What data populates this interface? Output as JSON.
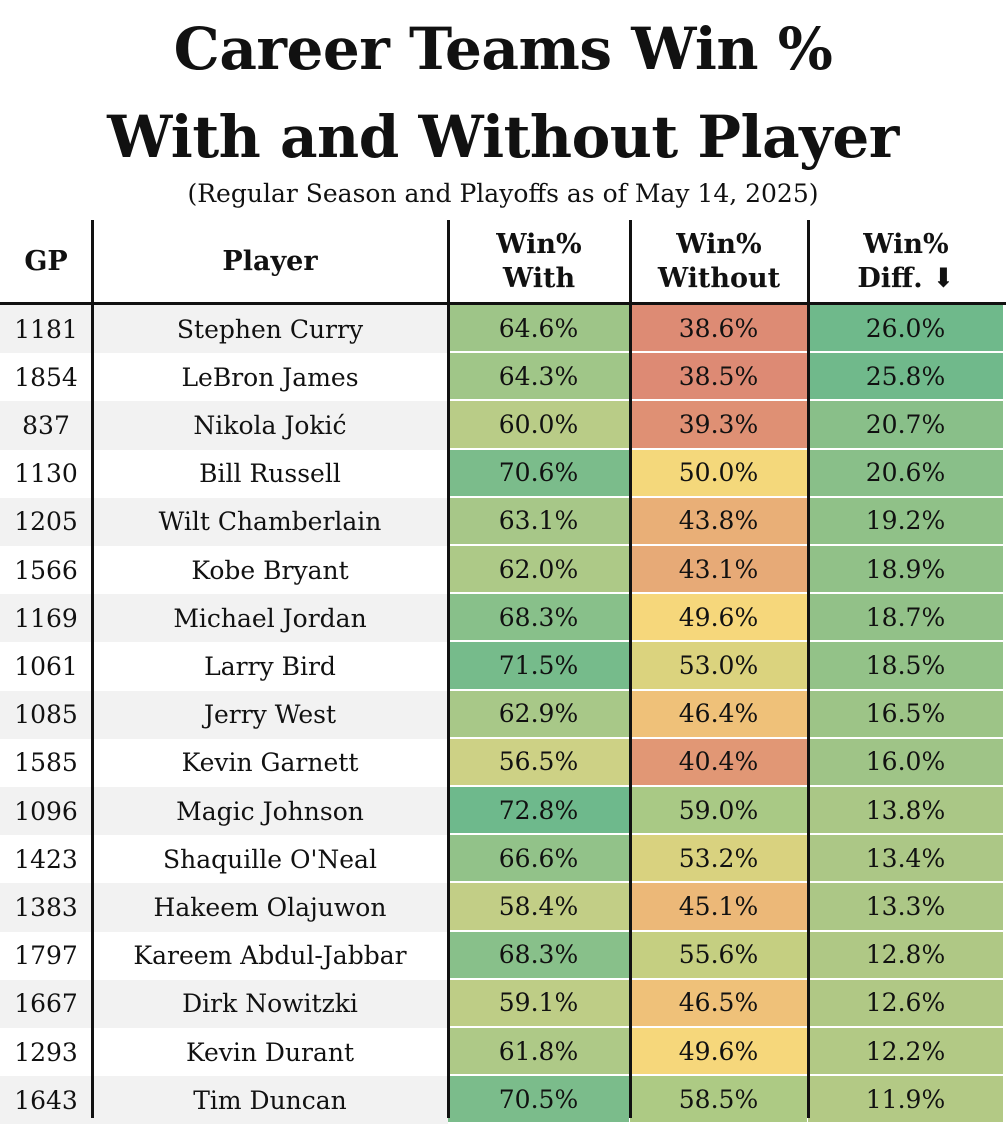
{
  "header": {
    "title": [
      "Career Teams Win %",
      "With and Without Player"
    ],
    "subtitle": "(Regular Season and Playoffs as of May 14, 2025)"
  },
  "table": {
    "columns": [
      [
        "GP"
      ],
      [
        "Player"
      ],
      [
        "Win%",
        "With"
      ],
      [
        "Win%",
        "Without"
      ],
      [
        "Win%",
        "Diff. ⬇"
      ]
    ],
    "rows": [
      [
        "1181",
        "Stephen Curry",
        "64.6%",
        "38.6%",
        "26.0%"
      ],
      [
        "1854",
        "LeBron James",
        "64.3%",
        "38.5%",
        "25.8%"
      ],
      [
        "837",
        "Nikola Jokić",
        "60.0%",
        "39.3%",
        "20.7%"
      ],
      [
        "1130",
        "Bill Russell",
        "70.6%",
        "50.0%",
        "20.6%"
      ],
      [
        "1205",
        "Wilt Chamberlain",
        "63.1%",
        "43.8%",
        "19.2%"
      ],
      [
        "1566",
        "Kobe Bryant",
        "62.0%",
        "43.1%",
        "18.9%"
      ],
      [
        "1169",
        "Michael Jordan",
        "68.3%",
        "49.6%",
        "18.7%"
      ],
      [
        "1061",
        "Larry Bird",
        "71.5%",
        "53.0%",
        "18.5%"
      ],
      [
        "1085",
        "Jerry West",
        "62.9%",
        "46.4%",
        "16.5%"
      ],
      [
        "1585",
        "Kevin Garnett",
        "56.5%",
        "40.4%",
        "16.0%"
      ],
      [
        "1096",
        "Magic Johnson",
        "72.8%",
        "59.0%",
        "13.8%"
      ],
      [
        "1423",
        "Shaquille O'Neal",
        "66.6%",
        "53.2%",
        "13.4%"
      ],
      [
        "1383",
        "Hakeem Olajuwon",
        "58.4%",
        "45.1%",
        "13.3%"
      ],
      [
        "1797",
        "Kareem Abdul-Jabbar",
        "68.3%",
        "55.6%",
        "12.8%"
      ],
      [
        "1667",
        "Dirk Nowitzki",
        "59.1%",
        "46.5%",
        "12.6%"
      ],
      [
        "1293",
        "Kevin Durant",
        "61.8%",
        "49.6%",
        "12.2%"
      ],
      [
        "1643",
        "Tim Duncan",
        "70.5%",
        "58.5%",
        "11.9%"
      ]
    ]
  }
}
